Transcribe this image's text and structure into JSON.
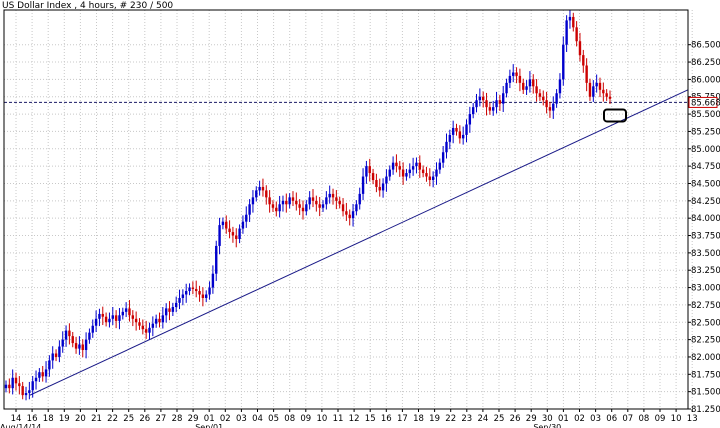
{
  "chart_data": {
    "type": "candlestick",
    "title": "US Dollar Index , 4 hours, # 230 / 500",
    "ylim": [
      81.25,
      87.0
    ],
    "yticks": [
      81.25,
      81.5,
      81.75,
      82.0,
      82.25,
      82.5,
      82.75,
      83.0,
      83.25,
      83.5,
      83.75,
      84.0,
      84.25,
      84.5,
      84.75,
      85.0,
      85.25,
      85.5,
      85.75,
      86.0,
      86.25,
      86.5
    ],
    "ytick_labels": [
      "81.2500",
      "81.5000",
      "81.7500",
      "82.0000",
      "82.2500",
      "82.5000",
      "82.7500",
      "83.0000",
      "83.2500",
      "83.5000",
      "83.7500",
      "84.0000",
      "84.2500",
      "84.5000",
      "84.7500",
      "85.0000",
      "85.2500",
      "85.5000",
      "85.7500",
      "86.0000",
      "86.2500",
      "86.5000"
    ],
    "x_day_labels": [
      "14",
      "16",
      "18",
      "19",
      "20",
      "21",
      "22",
      "25",
      "26",
      "27",
      "28",
      "29",
      "01",
      "02",
      "03",
      "04",
      "05",
      "08",
      "09",
      "10",
      "11",
      "12",
      "15",
      "16",
      "17",
      "18",
      "19",
      "22",
      "23",
      "24",
      "25",
      "26",
      "29",
      "30",
      "01",
      "02",
      "03",
      "06",
      "07",
      "08",
      "09",
      "10",
      "13"
    ],
    "x_major_labels": [
      "Aug/14/14",
      "Sep/01",
      "Sep/30"
    ],
    "current_price": 85.668,
    "current_price_label": "85.6680",
    "grid": true,
    "trendline": {
      "start": [
        0,
        81.45
      ],
      "end": [
        43,
        85.85
      ]
    },
    "highlight_box": {
      "date": "07",
      "level": 85.48
    },
    "candle_colors": {
      "up": "#0000cc",
      "down": "#cc0000"
    },
    "closes": [
      81.6,
      81.55,
      81.7,
      81.62,
      81.58,
      81.45,
      81.48,
      81.52,
      81.65,
      81.7,
      81.78,
      81.72,
      81.82,
      81.95,
      82.05,
      82.0,
      82.15,
      82.25,
      82.38,
      82.3,
      82.2,
      82.12,
      82.18,
      82.1,
      82.25,
      82.35,
      82.45,
      82.55,
      82.62,
      82.58,
      82.5,
      82.55,
      82.6,
      82.52,
      82.6,
      82.65,
      82.7,
      82.6,
      82.55,
      82.5,
      82.45,
      82.4,
      82.35,
      82.42,
      82.48,
      82.55,
      82.5,
      82.6,
      82.7,
      82.65,
      82.72,
      82.78,
      82.85,
      82.9,
      82.95,
      83.0,
      82.98,
      82.95,
      82.9,
      82.85,
      82.9,
      83.0,
      83.2,
      83.6,
      83.9,
      83.95,
      83.85,
      83.8,
      83.75,
      83.7,
      83.85,
      83.95,
      84.05,
      84.2,
      84.3,
      84.4,
      84.45,
      84.4,
      84.3,
      84.2,
      84.15,
      84.1,
      84.2,
      84.25,
      84.2,
      84.3,
      84.25,
      84.2,
      84.15,
      84.1,
      84.2,
      84.3,
      84.25,
      84.2,
      84.15,
      84.2,
      84.3,
      84.35,
      84.3,
      84.25,
      84.2,
      84.1,
      84.05,
      84.0,
      84.1,
      84.2,
      84.35,
      84.6,
      84.75,
      84.65,
      84.55,
      84.45,
      84.4,
      84.5,
      84.6,
      84.7,
      84.8,
      84.75,
      84.7,
      84.6,
      84.65,
      84.7,
      84.75,
      84.8,
      84.7,
      84.65,
      84.6,
      84.55,
      84.6,
      84.7,
      84.8,
      84.95,
      85.1,
      85.2,
      85.3,
      85.25,
      85.15,
      85.2,
      85.35,
      85.5,
      85.6,
      85.7,
      85.75,
      85.7,
      85.6,
      85.55,
      85.6,
      85.7,
      85.65,
      85.8,
      85.95,
      86.05,
      86.1,
      86.05,
      85.95,
      85.85,
      85.9,
      86.0,
      85.9,
      85.8,
      85.75,
      85.7,
      85.6,
      85.55,
      85.65,
      85.8,
      86.0,
      86.5,
      86.85,
      86.9,
      86.75,
      86.55,
      86.35,
      86.2,
      85.95,
      85.75,
      85.9,
      85.95,
      85.85,
      85.8,
      85.75,
      85.72
    ]
  }
}
